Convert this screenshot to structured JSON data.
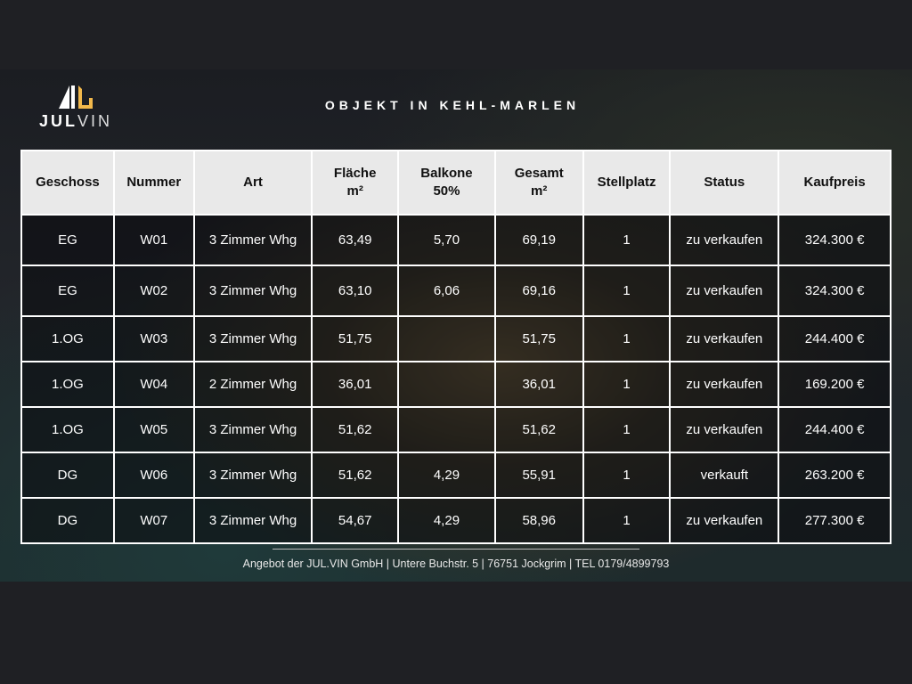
{
  "brand": {
    "name_bold": "JUL",
    "name_light": "VIN",
    "accent": "#f2b84b"
  },
  "title": "OBJEKT IN KEHL-MARLEN",
  "table": {
    "headers": [
      "Geschoss",
      "Nummer",
      "Art",
      "Fläche\nm²",
      "Balkone\n50%",
      "Gesamt\nm²",
      "Stellplatz",
      "Status",
      "Kaufpreis"
    ],
    "rows": [
      [
        "EG",
        "W01",
        "3 Zimmer Whg",
        "63,49",
        "5,70",
        "69,19",
        "1",
        "zu verkaufen",
        "324.300 €"
      ],
      [
        "EG",
        "W02",
        "3 Zimmer Whg",
        "63,10",
        "6,06",
        "69,16",
        "1",
        "zu verkaufen",
        "324.300 €"
      ],
      [
        "1.OG",
        "W03",
        "3 Zimmer Whg",
        "51,75",
        "",
        "51,75",
        "1",
        "zu verkaufen",
        "244.400 €"
      ],
      [
        "1.OG",
        "W04",
        "2 Zimmer Whg",
        "36,01",
        "",
        "36,01",
        "1",
        "zu verkaufen",
        "169.200 €"
      ],
      [
        "1.OG",
        "W05",
        "3 Zimmer Whg",
        "51,62",
        "",
        "51,62",
        "1",
        "zu verkaufen",
        "244.400 €"
      ],
      [
        "DG",
        "W06",
        "3 Zimmer Whg",
        "51,62",
        "4,29",
        "55,91",
        "1",
        "verkauft",
        "263.200 €"
      ],
      [
        "DG",
        "W07",
        "3 Zimmer Whg",
        "54,67",
        "4,29",
        "58,96",
        "1",
        "zu verkaufen",
        "277.300 €"
      ]
    ]
  },
  "footer": "Angebot der JUL.VIN GmbH | Untere Buchstr. 5 | 76751 Jockgrim | TEL 0179/4899793"
}
